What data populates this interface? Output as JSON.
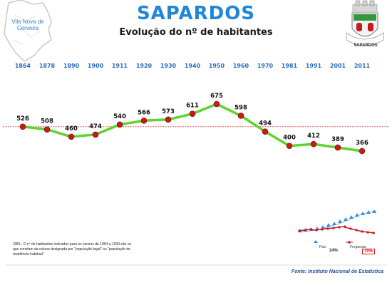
{
  "header": {
    "title": "SAPARDOS",
    "subtitle": "Evolução do nº de habitantes"
  },
  "map_label": "Vila Nova de Cerveira",
  "coat_label": "SAPARDOS",
  "chart_data": {
    "type": "line",
    "x": [
      "1864",
      "1878",
      "1890",
      "1900",
      "1911",
      "1920",
      "1930",
      "1940",
      "1950",
      "1960",
      "1970",
      "1981",
      "1991",
      "2001",
      "2011"
    ],
    "values": [
      526,
      508,
      460,
      474,
      540,
      566,
      573,
      611,
      675,
      598,
      494,
      400,
      412,
      389,
      366
    ],
    "reference_value": 526,
    "colors": {
      "line": "#5ed42a",
      "marker": "#c81a1a",
      "reference": "#e03a3a",
      "years": "#2a6cc4"
    }
  },
  "mini_chart": {
    "legend": [
      "Pais",
      "Freguesia"
    ],
    "pct_left": "24%",
    "pct_right": "70%"
  },
  "obs_text": "OBS.: O nº de habitantes indicados para os censos de 1864 a 1930 são os que constam da coluna designada por \"população legal\" ou \"população de residência habitual\"",
  "source": "Fonte: Instituto Nacional de Estatística"
}
